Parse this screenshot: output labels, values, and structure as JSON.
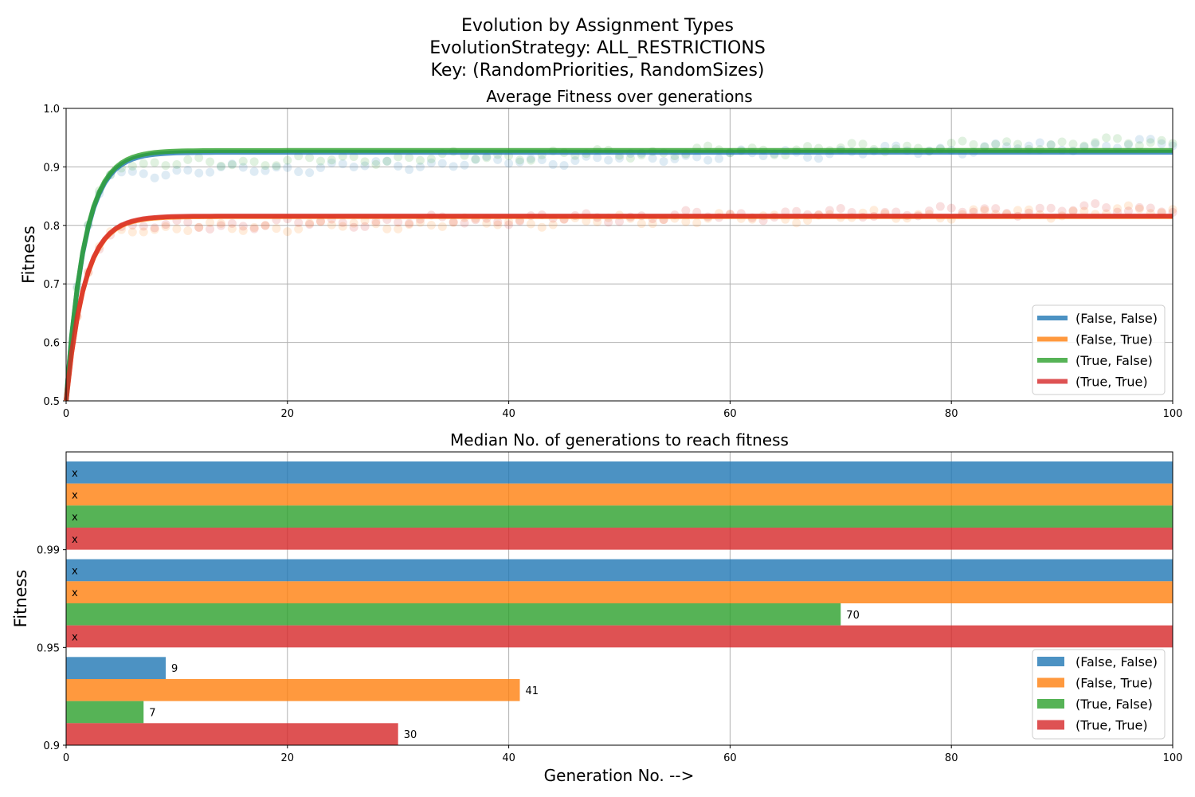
{
  "figure": {
    "title_lines": [
      "Evolution by Assignment Types",
      "EvolutionStrategy: ALL_RESTRICTIONS",
      "Key: (RandomPriorities, RandomSizes)"
    ],
    "xlabel": "Generation No. -->"
  },
  "chart_data": [
    {
      "type": "line",
      "title": "Average Fitness over generations",
      "xlabel": "",
      "ylabel": "Fitness",
      "xlim": [
        0,
        100
      ],
      "ylim": [
        0.5,
        1.0
      ],
      "xticks": [
        "0",
        "20",
        "40",
        "60",
        "80",
        "100"
      ],
      "yticks": [
        "0.5",
        "0.6",
        "0.7",
        "0.8",
        "0.9",
        "1.0"
      ],
      "grid": true,
      "legend_position": "lower-right",
      "series": [
        {
          "name": "(False, False)",
          "color": "#1f77b4",
          "plateau": 0.925,
          "rate": 0.6,
          "scatter_start": 0.885,
          "scatter_end": 0.94
        },
        {
          "name": "(False, True)",
          "color": "#ff7f0e",
          "plateau": 0.815,
          "rate": 0.6,
          "scatter_start": 0.79,
          "scatter_end": 0.825
        },
        {
          "name": "(True, False)",
          "color": "#2ca02c",
          "plateau": 0.928,
          "rate": 0.6,
          "scatter_start": 0.9,
          "scatter_end": 0.943
        },
        {
          "name": "(True, True)",
          "color": "#d62728",
          "plateau": 0.816,
          "rate": 0.6,
          "scatter_start": 0.795,
          "scatter_end": 0.83
        }
      ]
    },
    {
      "type": "bar",
      "orientation": "horizontal",
      "title": "Median No. of generations to reach fitness",
      "xlabel": "",
      "ylabel": "Fitness",
      "xlim": [
        0,
        100
      ],
      "xticks": [
        "0",
        "20",
        "40",
        "60",
        "80",
        "100"
      ],
      "grid": true,
      "legend_position": "lower-right",
      "categories": [
        "0.9",
        "0.95",
        "0.99"
      ],
      "not_reached_marker": "x",
      "series": [
        {
          "name": "(False, False)",
          "color": "#1f77b4",
          "values": [
            9,
            100,
            100
          ],
          "labels": [
            "9",
            "x",
            "x"
          ]
        },
        {
          "name": "(False, True)",
          "color": "#ff7f0e",
          "values": [
            41,
            100,
            100
          ],
          "labels": [
            "41",
            "x",
            "x"
          ]
        },
        {
          "name": "(True, False)",
          "color": "#2ca02c",
          "values": [
            7,
            70,
            100
          ],
          "labels": [
            "7",
            "70",
            "x"
          ]
        },
        {
          "name": "(True, True)",
          "color": "#d62728",
          "values": [
            30,
            100,
            100
          ],
          "labels": [
            "30",
            "x",
            "x"
          ]
        }
      ]
    }
  ]
}
